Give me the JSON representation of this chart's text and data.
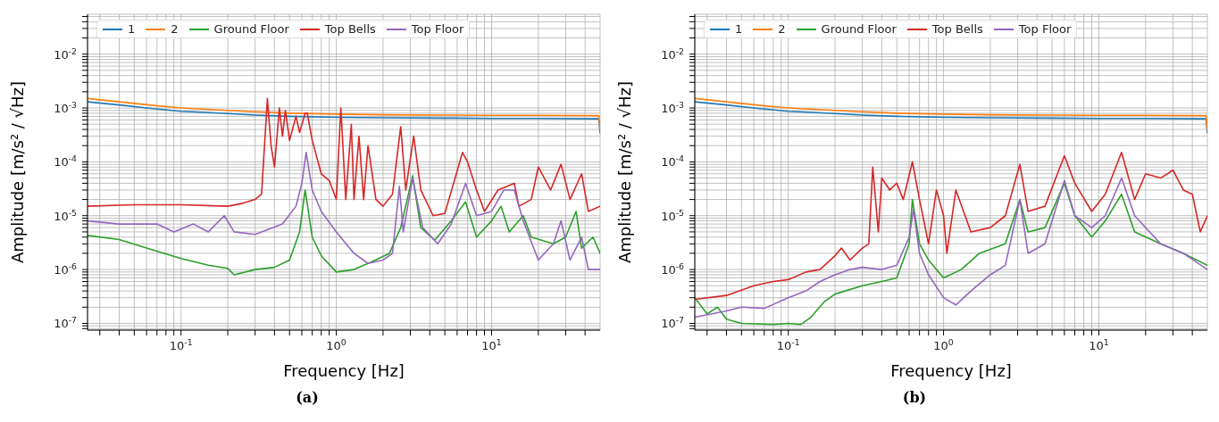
{
  "chart_data": [
    {
      "type": "line",
      "title": "(a)",
      "xlabel": "Frequency [Hz]",
      "ylabel": "Amplitude [m/s² / √Hz]",
      "log": "xy",
      "grid": true,
      "legend": "top",
      "marker": "none",
      "line_style": "solid",
      "xlim": [
        0.025,
        50
      ],
      "ylim": [
        7.5e-08,
        0.055
      ],
      "xticks": [
        {
          "value": 0.03,
          "label": null
        },
        {
          "value": 0.04,
          "label": null
        },
        {
          "value": 0.05,
          "label": null
        },
        {
          "value": 0.06,
          "label": null
        },
        {
          "value": 0.07,
          "label": null
        },
        {
          "value": 0.08,
          "label": null
        },
        {
          "value": 0.09,
          "label": null
        },
        {
          "value": 0.1,
          "label": "10$^{-1}$"
        },
        {
          "value": 0.2,
          "label": null
        },
        {
          "value": 0.3,
          "label": null
        },
        {
          "value": 0.4,
          "label": null
        },
        {
          "value": 0.5,
          "label": null
        },
        {
          "value": 0.6,
          "label": null
        },
        {
          "value": 0.7,
          "label": null
        },
        {
          "value": 0.8,
          "label": null
        },
        {
          "value": 0.9,
          "label": null
        },
        {
          "value": 1,
          "label": "10$^{0}$"
        },
        {
          "value": 2,
          "label": null
        },
        {
          "value": 3,
          "label": null
        },
        {
          "value": 4,
          "label": null
        },
        {
          "value": 5,
          "label": null
        },
        {
          "value": 6,
          "label": null
        },
        {
          "value": 7,
          "label": null
        },
        {
          "value": 8,
          "label": null
        },
        {
          "value": 9,
          "label": null
        },
        {
          "value": 10,
          "label": "10$^{1}$"
        },
        {
          "value": 20,
          "label": null
        },
        {
          "value": 30,
          "label": null
        },
        {
          "value": 40,
          "label": null
        }
      ],
      "yticks": [
        {
          "value": 8e-08,
          "label": null
        },
        {
          "value": 9e-08,
          "label": null
        },
        {
          "value": 1e-07,
          "label": "10$^{-7}$"
        },
        {
          "value": 2e-07,
          "label": null
        },
        {
          "value": 3e-07,
          "label": null
        },
        {
          "value": 4e-07,
          "label": null
        },
        {
          "value": 5e-07,
          "label": null
        },
        {
          "value": 6e-07,
          "label": null
        },
        {
          "value": 7e-07,
          "label": null
        },
        {
          "value": 8e-07,
          "label": null
        },
        {
          "value": 9e-07,
          "label": null
        },
        {
          "value": 1e-06,
          "label": "10$^{-6}$"
        },
        {
          "value": 2e-06,
          "label": null
        },
        {
          "value": 3e-06,
          "label": null
        },
        {
          "value": 4e-06,
          "label": null
        },
        {
          "value": 5e-06,
          "label": null
        },
        {
          "value": 6e-06,
          "label": null
        },
        {
          "value": 7e-06,
          "label": null
        },
        {
          "value": 8e-06,
          "label": null
        },
        {
          "value": 9e-06,
          "label": null
        },
        {
          "value": 1e-05,
          "label": "10$^{-5}$"
        },
        {
          "value": 2e-05,
          "label": null
        },
        {
          "value": 3e-05,
          "label": null
        },
        {
          "value": 4e-05,
          "label": null
        },
        {
          "value": 5e-05,
          "label": null
        },
        {
          "value": 6e-05,
          "label": null
        },
        {
          "value": 7e-05,
          "label": null
        },
        {
          "value": 8e-05,
          "label": null
        },
        {
          "value": 9e-05,
          "label": null
        },
        {
          "value": 0.0001,
          "label": "10$^{-4}$"
        },
        {
          "value": 0.0002,
          "label": null
        },
        {
          "value": 0.0003,
          "label": null
        },
        {
          "value": 0.0004,
          "label": null
        },
        {
          "value": 0.0005,
          "label": null
        },
        {
          "value": 0.0006,
          "label": null
        },
        {
          "value": 0.0007,
          "label": null
        },
        {
          "value": 0.0008,
          "label": null
        },
        {
          "value": 0.0009,
          "label": null
        },
        {
          "value": 0.001,
          "label": "10$^{-3}$"
        },
        {
          "value": 0.002,
          "label": null
        },
        {
          "value": 0.003,
          "label": null
        },
        {
          "value": 0.004,
          "label": null
        },
        {
          "value": 0.005,
          "label": null
        },
        {
          "value": 0.006,
          "label": null
        },
        {
          "value": 0.007,
          "label": null
        },
        {
          "value": 0.008,
          "label": null
        },
        {
          "value": 0.009,
          "label": null
        },
        {
          "value": 0.01,
          "label": "10$^{-2}$"
        },
        {
          "value": 0.02,
          "label": null
        },
        {
          "value": 0.03,
          "label": null
        },
        {
          "value": 0.04,
          "label": null
        },
        {
          "value": 0.05,
          "label": null
        }
      ],
      "series": [
        {
          "name": "1",
          "color": "#1f77b4",
          "x": [
            0.025,
            0.04,
            0.06,
            0.1,
            0.2,
            0.3,
            0.5,
            1,
            2,
            5,
            10,
            20,
            49,
            50
          ],
          "values": [
            0.0013,
            0.00114,
            0.001,
            0.00087,
            0.00079,
            0.00074,
            0.0007,
            0.00067,
            0.00066,
            0.00065,
            0.00064,
            0.00064,
            0.00063,
            0.00035
          ]
        },
        {
          "name": "2",
          "color": "#ff7f0e",
          "x": [
            0.025,
            0.04,
            0.06,
            0.1,
            0.2,
            0.3,
            0.5,
            1,
            2,
            5,
            10,
            20,
            49,
            50
          ],
          "values": [
            0.0015,
            0.0013,
            0.00115,
            0.001,
            0.0009,
            0.00085,
            0.0008,
            0.00077,
            0.00075,
            0.00074,
            0.00073,
            0.00073,
            0.00072,
            0.0004
          ]
        },
        {
          "name": "Ground Floor",
          "color": "#2ca02c",
          "x": [
            0.025,
            0.04,
            0.06,
            0.1,
            0.15,
            0.2,
            0.22,
            0.3,
            0.4,
            0.5,
            0.58,
            0.63,
            0.7,
            0.8,
            1,
            1.3,
            1.7,
            2.2,
            2.6,
            3.1,
            3.5,
            4.3,
            5.5,
            6.8,
            8,
            10,
            11.5,
            13,
            16,
            18,
            25,
            30,
            35,
            38,
            45,
            50
          ],
          "values": [
            4.3e-06,
            3.6e-06,
            2.5e-06,
            1.6e-06,
            1.2e-06,
            1.05e-06,
            8e-07,
            1e-06,
            1.1e-06,
            1.5e-06,
            5e-06,
            3e-05,
            4e-06,
            1.8e-06,
            9e-07,
            1e-06,
            1.4e-06,
            2e-06,
            6e-06,
            5.5e-05,
            6e-06,
            3.5e-06,
            8e-06,
            1.8e-05,
            4e-06,
            8e-06,
            1.5e-05,
            5e-06,
            1e-05,
            4e-06,
            3e-06,
            4e-06,
            1.2e-05,
            2.5e-06,
            4e-06,
            2e-06
          ]
        },
        {
          "name": "Top Bells",
          "color": "#d62728",
          "x": [
            0.025,
            0.05,
            0.1,
            0.2,
            0.25,
            0.3,
            0.33,
            0.36,
            0.38,
            0.4,
            0.43,
            0.45,
            0.47,
            0.5,
            0.55,
            0.58,
            0.63,
            0.65,
            0.7,
            0.8,
            0.9,
            0.95,
            1,
            1.07,
            1.15,
            1.25,
            1.3,
            1.4,
            1.5,
            1.6,
            1.8,
            2,
            2.3,
            2.6,
            2.8,
            3.15,
            3.5,
            4.2,
            5,
            6.5,
            7,
            8,
            9,
            11,
            14,
            15,
            18,
            20,
            24,
            28,
            32,
            38,
            42,
            50
          ],
          "values": [
            1.5e-05,
            1.6e-05,
            1.6e-05,
            1.5e-05,
            1.7e-05,
            2e-05,
            2.5e-05,
            0.0015,
            0.0002,
            8e-05,
            0.001,
            0.0003,
            0.0009,
            0.00025,
            0.0007,
            0.00035,
            0.0008,
            0.0008,
            0.00025,
            6e-05,
            4.5e-05,
            3e-05,
            2e-05,
            0.001,
            2e-05,
            0.0005,
            2e-05,
            0.0003,
            2e-05,
            0.0002,
            2e-05,
            1.5e-05,
            2.5e-05,
            0.00045,
            3e-05,
            0.0003,
            3e-05,
            1e-05,
            1.1e-05,
            0.00015,
            0.0001,
            3e-05,
            1.2e-05,
            3e-05,
            4e-05,
            1.5e-05,
            2e-05,
            8e-05,
            3e-05,
            9e-05,
            2e-05,
            6e-05,
            1.2e-05,
            1.5e-05
          ]
        },
        {
          "name": "Top Floor",
          "color": "#9467bd",
          "x": [
            0.025,
            0.04,
            0.07,
            0.09,
            0.12,
            0.15,
            0.19,
            0.22,
            0.3,
            0.45,
            0.55,
            0.6,
            0.64,
            0.7,
            0.8,
            1,
            1.3,
            1.6,
            2,
            2.3,
            2.55,
            2.7,
            3.1,
            3.6,
            4.5,
            5.5,
            6.8,
            8,
            10,
            12,
            14,
            16,
            20,
            25,
            28,
            32,
            38,
            42,
            50
          ],
          "values": [
            8e-06,
            7e-06,
            7e-06,
            5e-06,
            7e-06,
            5e-06,
            1e-05,
            5e-06,
            4.5e-06,
            7e-06,
            1.5e-05,
            4e-05,
            0.00015,
            3e-05,
            1.2e-05,
            5e-06,
            2e-06,
            1.3e-06,
            1.5e-06,
            2e-06,
            3.5e-05,
            5e-06,
            5e-05,
            6e-06,
            3e-06,
            7e-06,
            4e-05,
            1e-05,
            1.2e-05,
            3e-05,
            3e-05,
            8e-06,
            1.5e-06,
            3e-06,
            8e-06,
            1.5e-06,
            4e-06,
            1e-06,
            1e-06
          ]
        }
      ]
    },
    {
      "type": "line",
      "title": "(b)",
      "xlabel": "Frequency [Hz]",
      "ylabel": "Amplitude [m/s² / √Hz]",
      "log": "xy",
      "grid": true,
      "legend": "top",
      "marker": "none",
      "line_style": "solid",
      "xlim": [
        0.025,
        50
      ],
      "ylim": [
        7.5e-08,
        0.055
      ],
      "xticks": [
        {
          "value": 0.03,
          "label": null
        },
        {
          "value": 0.04,
          "label": null
        },
        {
          "value": 0.05,
          "label": null
        },
        {
          "value": 0.06,
          "label": null
        },
        {
          "value": 0.07,
          "label": null
        },
        {
          "value": 0.08,
          "label": null
        },
        {
          "value": 0.09,
          "label": null
        },
        {
          "value": 0.1,
          "label": "10$^{-1}$"
        },
        {
          "value": 0.2,
          "label": null
        },
        {
          "value": 0.3,
          "label": null
        },
        {
          "value": 0.4,
          "label": null
        },
        {
          "value": 0.5,
          "label": null
        },
        {
          "value": 0.6,
          "label": null
        },
        {
          "value": 0.7,
          "label": null
        },
        {
          "value": 0.8,
          "label": null
        },
        {
          "value": 0.9,
          "label": null
        },
        {
          "value": 1,
          "label": "10$^{0}$"
        },
        {
          "value": 2,
          "label": null
        },
        {
          "value": 3,
          "label": null
        },
        {
          "value": 4,
          "label": null
        },
        {
          "value": 5,
          "label": null
        },
        {
          "value": 6,
          "label": null
        },
        {
          "value": 7,
          "label": null
        },
        {
          "value": 8,
          "label": null
        },
        {
          "value": 9,
          "label": null
        },
        {
          "value": 10,
          "label": "10$^{1}$"
        },
        {
          "value": 20,
          "label": null
        },
        {
          "value": 30,
          "label": null
        },
        {
          "value": 40,
          "label": null
        }
      ],
      "yticks": [
        {
          "value": 8e-08,
          "label": null
        },
        {
          "value": 9e-08,
          "label": null
        },
        {
          "value": 1e-07,
          "label": "10$^{-7}$"
        },
        {
          "value": 2e-07,
          "label": null
        },
        {
          "value": 3e-07,
          "label": null
        },
        {
          "value": 4e-07,
          "label": null
        },
        {
          "value": 5e-07,
          "label": null
        },
        {
          "value": 6e-07,
          "label": null
        },
        {
          "value": 7e-07,
          "label": null
        },
        {
          "value": 8e-07,
          "label": null
        },
        {
          "value": 9e-07,
          "label": null
        },
        {
          "value": 1e-06,
          "label": "10$^{-6}$"
        },
        {
          "value": 2e-06,
          "label": null
        },
        {
          "value": 3e-06,
          "label": null
        },
        {
          "value": 4e-06,
          "label": null
        },
        {
          "value": 5e-06,
          "label": null
        },
        {
          "value": 6e-06,
          "label": null
        },
        {
          "value": 7e-06,
          "label": null
        },
        {
          "value": 8e-06,
          "label": null
        },
        {
          "value": 9e-06,
          "label": null
        },
        {
          "value": 1e-05,
          "label": "10$^{-5}$"
        },
        {
          "value": 2e-05,
          "label": null
        },
        {
          "value": 3e-05,
          "label": null
        },
        {
          "value": 4e-05,
          "label": null
        },
        {
          "value": 5e-05,
          "label": null
        },
        {
          "value": 6e-05,
          "label": null
        },
        {
          "value": 7e-05,
          "label": null
        },
        {
          "value": 8e-05,
          "label": null
        },
        {
          "value": 9e-05,
          "label": null
        },
        {
          "value": 0.0001,
          "label": "10$^{-4}$"
        },
        {
          "value": 0.0002,
          "label": null
        },
        {
          "value": 0.0003,
          "label": null
        },
        {
          "value": 0.0004,
          "label": null
        },
        {
          "value": 0.0005,
          "label": null
        },
        {
          "value": 0.0006,
          "label": null
        },
        {
          "value": 0.0007,
          "label": null
        },
        {
          "value": 0.0008,
          "label": null
        },
        {
          "value": 0.0009,
          "label": null
        },
        {
          "value": 0.001,
          "label": "10$^{-3}$"
        },
        {
          "value": 0.002,
          "label": null
        },
        {
          "value": 0.003,
          "label": null
        },
        {
          "value": 0.004,
          "label": null
        },
        {
          "value": 0.005,
          "label": null
        },
        {
          "value": 0.006,
          "label": null
        },
        {
          "value": 0.007,
          "label": null
        },
        {
          "value": 0.008,
          "label": null
        },
        {
          "value": 0.009,
          "label": null
        },
        {
          "value": 0.01,
          "label": "10$^{-2}$"
        },
        {
          "value": 0.02,
          "label": null
        },
        {
          "value": 0.03,
          "label": null
        },
        {
          "value": 0.04,
          "label": null
        },
        {
          "value": 0.05,
          "label": null
        }
      ],
      "series": [
        {
          "name": "1",
          "color": "#1f77b4",
          "x": [
            0.025,
            0.04,
            0.06,
            0.1,
            0.2,
            0.3,
            0.5,
            1,
            2,
            5,
            10,
            20,
            49,
            50
          ],
          "values": [
            0.0013,
            0.00114,
            0.001,
            0.00087,
            0.00079,
            0.00074,
            0.0007,
            0.00067,
            0.00066,
            0.00065,
            0.00064,
            0.00064,
            0.00063,
            0.00035
          ]
        },
        {
          "name": "2",
          "color": "#ff7f0e",
          "x": [
            0.025,
            0.04,
            0.06,
            0.1,
            0.2,
            0.3,
            0.5,
            1,
            2,
            5,
            10,
            20,
            49,
            50
          ],
          "values": [
            0.0015,
            0.0013,
            0.00115,
            0.001,
            0.0009,
            0.00085,
            0.0008,
            0.00077,
            0.00075,
            0.00074,
            0.00073,
            0.00073,
            0.00072,
            0.0004
          ]
        },
        {
          "name": "Ground Floor",
          "color": "#2ca02c",
          "x": [
            0.025,
            0.03,
            0.035,
            0.04,
            0.05,
            0.08,
            0.1,
            0.12,
            0.14,
            0.17,
            0.2,
            0.3,
            0.4,
            0.5,
            0.6,
            0.63,
            0.7,
            0.8,
            1,
            1.3,
            1.7,
            2.5,
            3.1,
            3.5,
            4.5,
            6,
            7,
            9,
            11,
            14,
            17,
            25,
            35,
            50
          ],
          "values": [
            3e-07,
            1.5e-07,
            2e-07,
            1.2e-07,
            1e-07,
            9.5e-08,
            1e-07,
            9.5e-08,
            1.3e-07,
            2.5e-07,
            3.5e-07,
            5e-07,
            6e-07,
            7e-07,
            3e-06,
            2e-05,
            3e-06,
            1.5e-06,
            7e-07,
            1e-06,
            2e-06,
            3e-06,
            2e-05,
            5e-06,
            6e-06,
            4e-05,
            1e-05,
            4e-06,
            8e-06,
            2.5e-05,
            5e-06,
            3e-06,
            2e-06,
            1.2e-06
          ]
        },
        {
          "name": "Top Bells",
          "color": "#d62728",
          "x": [
            0.025,
            0.04,
            0.06,
            0.08,
            0.1,
            0.13,
            0.16,
            0.2,
            0.22,
            0.25,
            0.3,
            0.33,
            0.35,
            0.38,
            0.4,
            0.45,
            0.5,
            0.55,
            0.63,
            0.7,
            0.8,
            0.9,
            1,
            1.05,
            1.2,
            1.5,
            2,
            2.5,
            3.1,
            3.5,
            4.5,
            6,
            7,
            9,
            11,
            14,
            17,
            20,
            25,
            30,
            35,
            40,
            45,
            50
          ],
          "values": [
            2.8e-07,
            3.3e-07,
            5e-07,
            6e-07,
            6.5e-07,
            9e-07,
            1e-06,
            1.8e-06,
            2.5e-06,
            1.5e-06,
            2.5e-06,
            3e-06,
            8e-05,
            5e-06,
            5e-05,
            3e-05,
            4e-05,
            2e-05,
            0.0001,
            2e-05,
            3e-06,
            3e-05,
            1e-05,
            2e-06,
            3e-05,
            5e-06,
            6e-06,
            1e-05,
            9e-05,
            1.2e-05,
            1.5e-05,
            0.00013,
            4e-05,
            1.2e-05,
            2.5e-05,
            0.00015,
            2e-05,
            6e-05,
            5e-05,
            7e-05,
            3e-05,
            2.5e-05,
            5e-06,
            1e-05
          ]
        },
        {
          "name": "Top Floor",
          "color": "#9467bd",
          "x": [
            0.025,
            0.04,
            0.05,
            0.07,
            0.1,
            0.13,
            0.16,
            0.2,
            0.25,
            0.3,
            0.4,
            0.5,
            0.6,
            0.64,
            0.7,
            0.8,
            1,
            1.2,
            1.5,
            2,
            2.5,
            3.1,
            3.5,
            4.5,
            6,
            7,
            9,
            11,
            14,
            17,
            25,
            35,
            50
          ],
          "values": [
            1.3e-07,
            1.7e-07,
            2e-07,
            1.9e-07,
            3e-07,
            4e-07,
            6e-07,
            8e-07,
            1e-06,
            1.1e-06,
            1e-06,
            1.2e-06,
            4e-06,
            1.3e-05,
            2e-06,
            8e-07,
            3e-07,
            2.2e-07,
            4e-07,
            8e-07,
            1.2e-06,
            2e-05,
            2e-06,
            3e-06,
            4.5e-05,
            1e-05,
            6e-06,
            1e-05,
            5e-05,
            1e-05,
            3e-06,
            2e-06,
            1e-06
          ]
        }
      ]
    }
  ]
}
